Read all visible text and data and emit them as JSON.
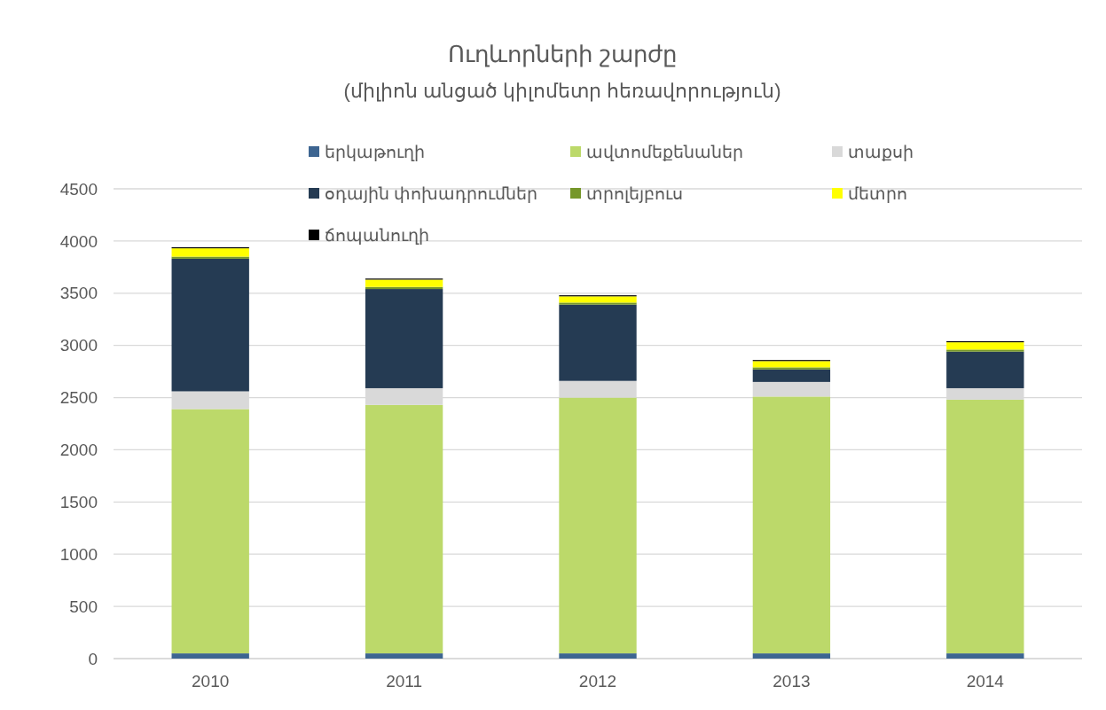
{
  "chart_data": {
    "type": "bar",
    "stacked": true,
    "title": "Ուղևորների շարժը",
    "subtitle": "(միլիոն անցած կիլոմետր հեռավորություն)",
    "categories": [
      "2010",
      "2011",
      "2012",
      "2013",
      "2014"
    ],
    "series": [
      {
        "name": "երկաթուղի",
        "color": "#3d6591",
        "values": [
          50,
          50,
          50,
          50,
          50
        ]
      },
      {
        "name": "ավտոմեքենաներ",
        "color": "#bcd96a",
        "values": [
          2340,
          2380,
          2450,
          2460,
          2430
        ]
      },
      {
        "name": "տաքսի",
        "color": "#d9d9d9",
        "values": [
          170,
          160,
          160,
          140,
          110
        ]
      },
      {
        "name": "օդային փոխադրումներ",
        "color": "#253b53",
        "values": [
          1270,
          950,
          730,
          120,
          350
        ]
      },
      {
        "name": "տրոլեյբուս",
        "color": "#76972a",
        "values": [
          20,
          20,
          20,
          20,
          20
        ]
      },
      {
        "name": "մետրո",
        "color": "#ffff00",
        "values": [
          80,
          70,
          60,
          60,
          70
        ]
      },
      {
        "name": "ճոպանուղի",
        "color": "#000000",
        "values": [
          10,
          10,
          10,
          10,
          10
        ]
      }
    ],
    "ylim": [
      0,
      4500
    ],
    "yticks": [
      0,
      500,
      1000,
      1500,
      2000,
      2500,
      3000,
      3500,
      4000,
      4500
    ],
    "grid": "y",
    "legend": "top"
  }
}
